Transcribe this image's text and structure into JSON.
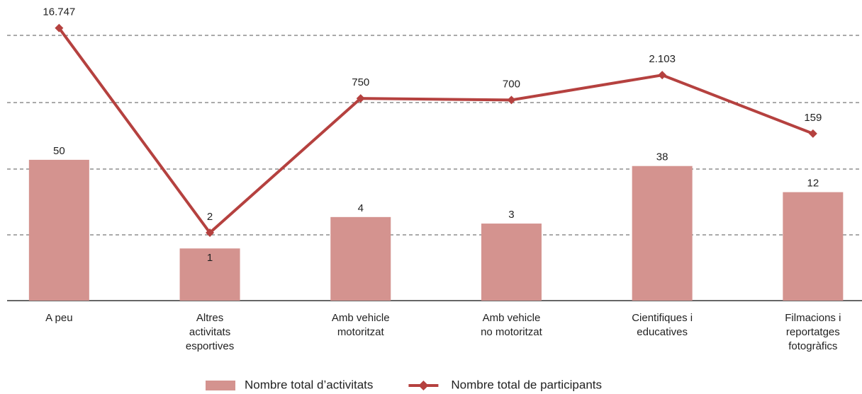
{
  "chart_data": {
    "type": "combo",
    "categories": [
      "A peu",
      "Altres\nactivitats\nesportives",
      "Amb vehicle\nmotoritzat",
      "Amb vehicle\nno motoritzat",
      "Cientifiques i\neducatives",
      "Filmacions i\nreportatges\nfotogràfics"
    ],
    "series": [
      {
        "name": "Nombre total d’activitats",
        "type": "bar",
        "color": "#d4938f",
        "values": [
          50,
          1,
          4,
          3,
          38,
          12
        ]
      },
      {
        "name": "Nombre total de participants",
        "type": "line",
        "color": "#b5413f",
        "values": [
          16747,
          2,
          750,
          700,
          2103,
          159
        ],
        "value_labels": [
          "16.747",
          "2",
          "750",
          "700",
          "2.103",
          "159"
        ]
      }
    ],
    "yscale": "log",
    "ylim": [
      0.1,
      30000
    ],
    "grid": true,
    "legend": "bottom"
  }
}
